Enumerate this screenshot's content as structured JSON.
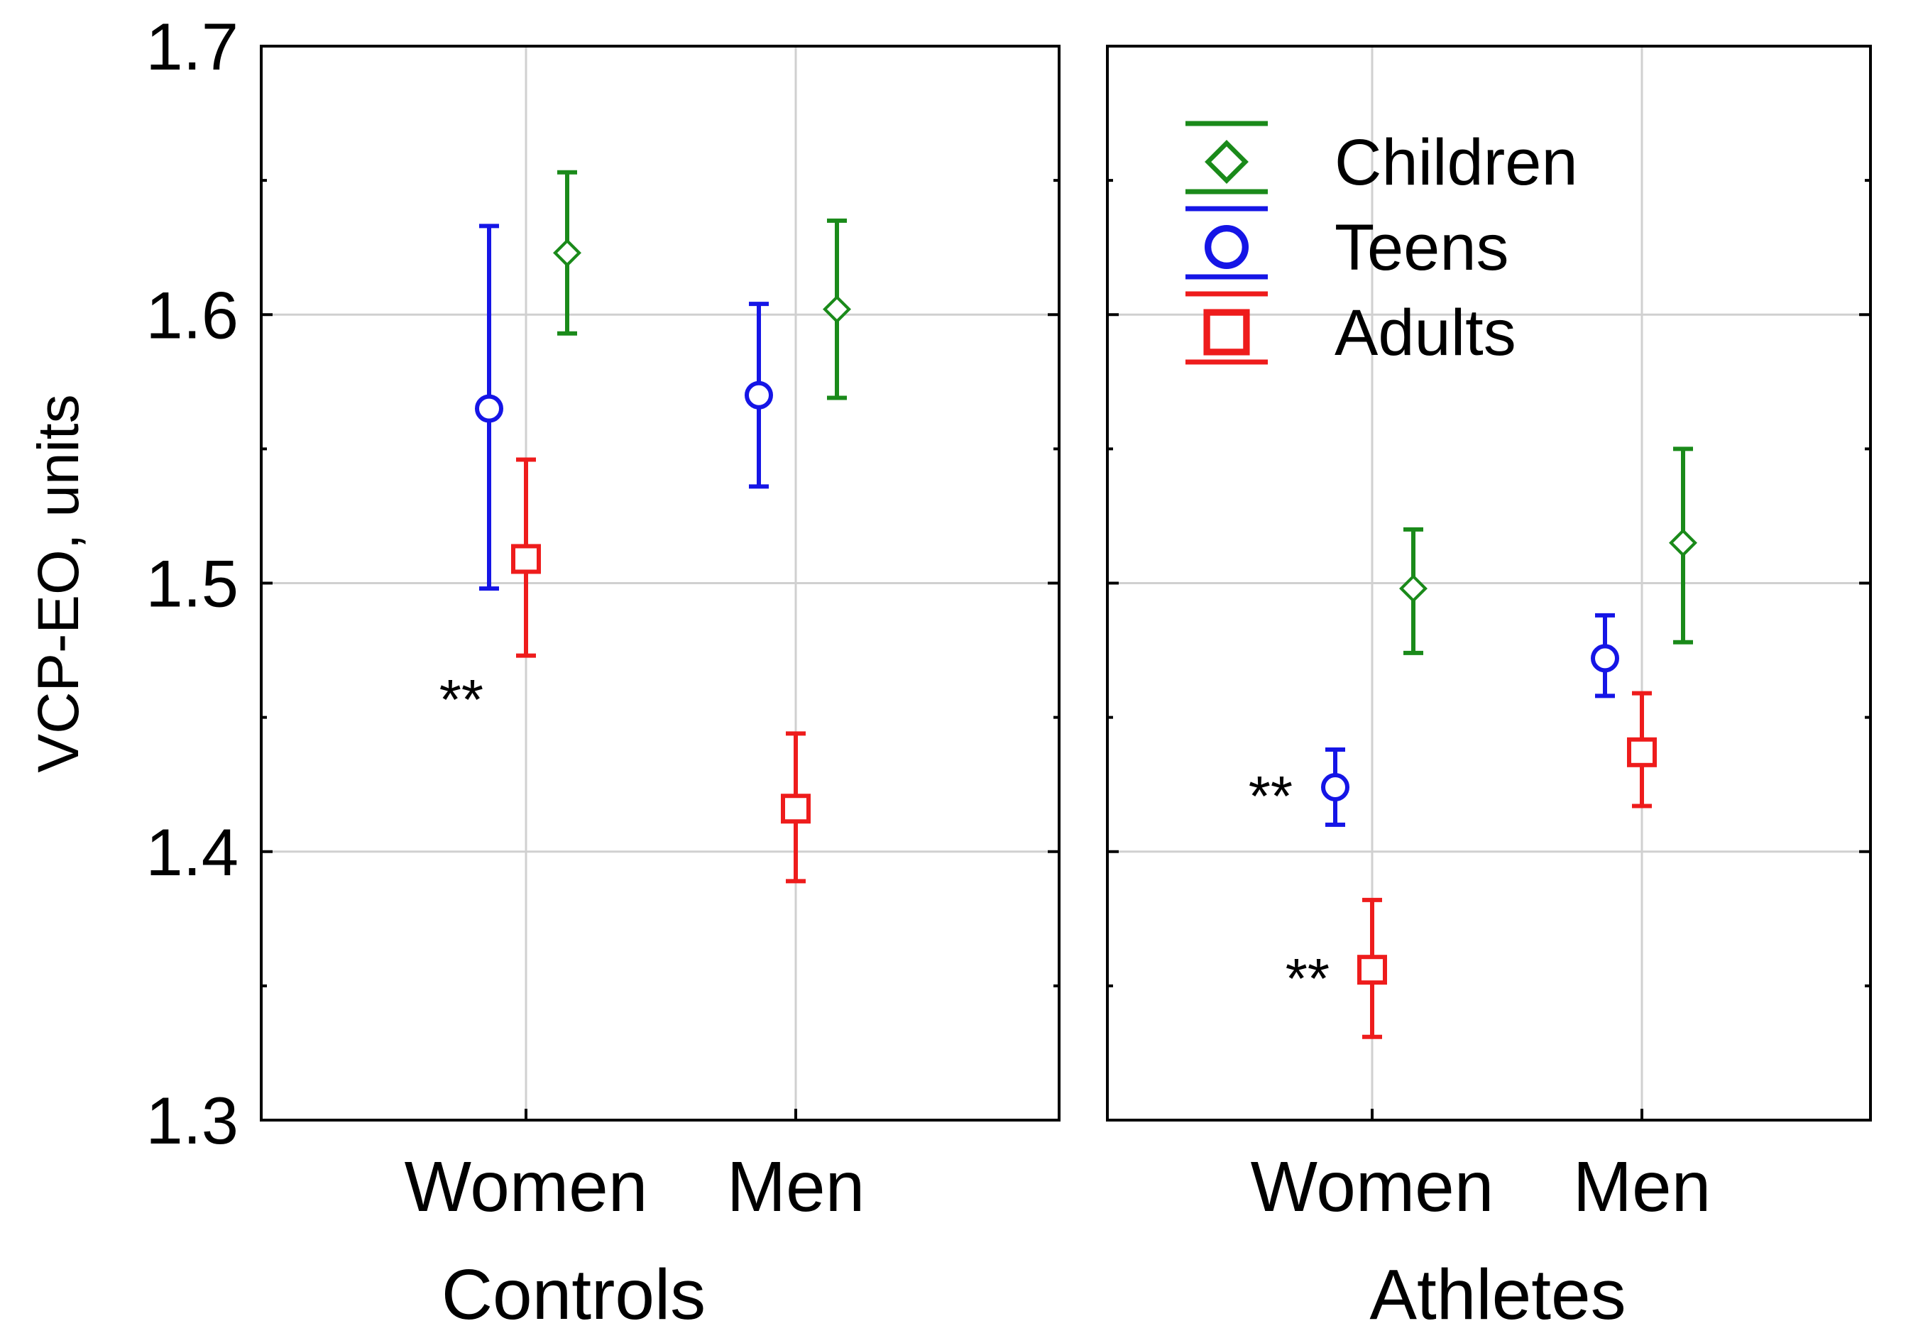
{
  "chart_data": {
    "type": "scatter",
    "subtype": "error_bar_panels",
    "ylabel": "VCP-EO, units",
    "ylim": [
      1.3,
      1.7
    ],
    "yticks": [
      "1.3",
      "1.4",
      "1.5",
      "1.6",
      "1.7"
    ],
    "categories": [
      "Women",
      "Men"
    ],
    "grid": true,
    "legend_position": "top-right of right panel",
    "series_info": [
      {
        "name": "Children",
        "color": "#1a8a1a",
        "marker": "diamond"
      },
      {
        "name": "Teens",
        "color": "#1515e6",
        "marker": "circle"
      },
      {
        "name": "Adults",
        "color": "#ee1c1c",
        "marker": "square"
      }
    ],
    "panels": [
      {
        "group": "Controls",
        "series": [
          {
            "name": "Children",
            "values": [
              1.623,
              1.602
            ],
            "lower": [
              1.593,
              1.569
            ],
            "upper": [
              1.653,
              1.635
            ]
          },
          {
            "name": "Teens",
            "values": [
              1.565,
              1.57
            ],
            "lower": [
              1.498,
              1.536
            ],
            "upper": [
              1.633,
              1.604
            ]
          },
          {
            "name": "Adults",
            "values": [
              1.509,
              1.416
            ],
            "lower": [
              1.473,
              1.389
            ],
            "upper": [
              1.546,
              1.444
            ]
          }
        ],
        "annotations": [
          {
            "text": "**",
            "category": "Women",
            "y": 1.46
          }
        ]
      },
      {
        "group": "Athletes",
        "series": [
          {
            "name": "Children",
            "values": [
              1.498,
              1.515
            ],
            "lower": [
              1.474,
              1.478
            ],
            "upper": [
              1.52,
              1.55
            ]
          },
          {
            "name": "Teens",
            "values": [
              1.424,
              1.472
            ],
            "lower": [
              1.41,
              1.458
            ],
            "upper": [
              1.438,
              1.488
            ]
          },
          {
            "name": "Adults",
            "values": [
              1.356,
              1.437
            ],
            "lower": [
              1.331,
              1.417
            ],
            "upper": [
              1.382,
              1.459
            ]
          }
        ],
        "annotations": [
          {
            "text": "**",
            "category": "Women",
            "series": "Teens",
            "y": 1.424
          },
          {
            "text": "**",
            "category": "Women",
            "series": "Adults",
            "y": 1.356
          }
        ]
      }
    ]
  }
}
